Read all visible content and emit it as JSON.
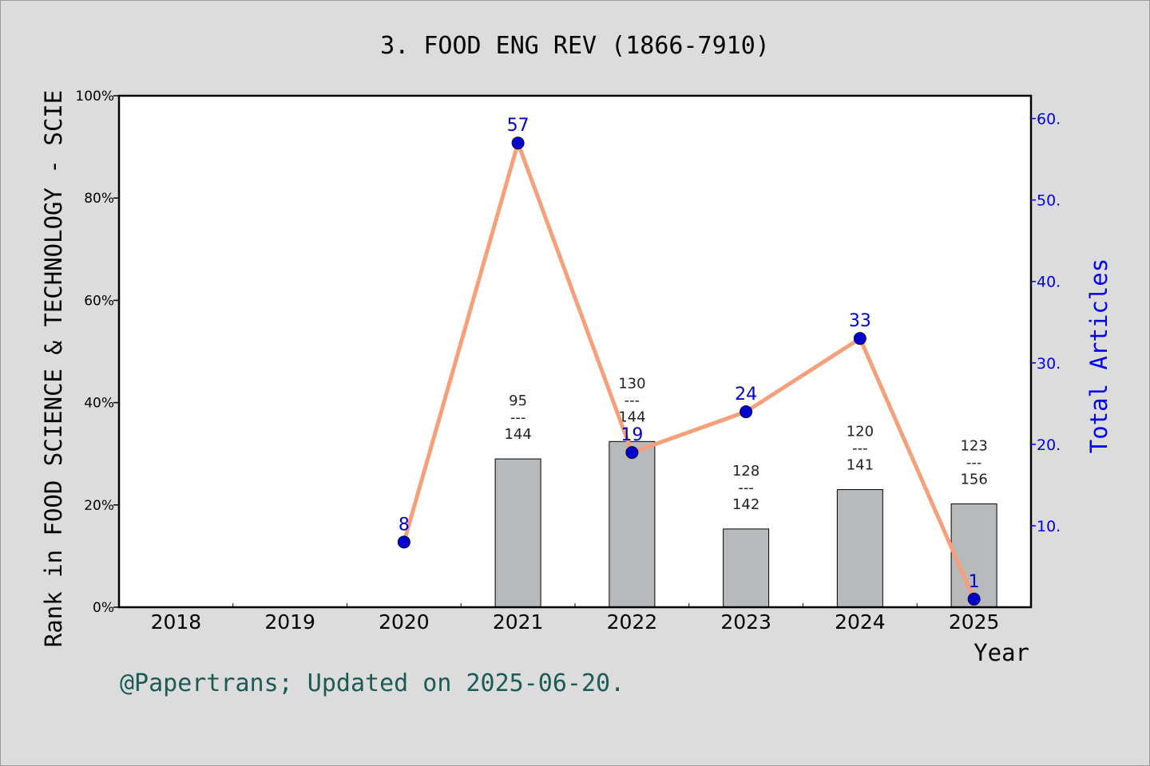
{
  "chart_data": {
    "type": "bar",
    "title": "3. FOOD ENG REV (1866-7910)",
    "xlabel": "Year",
    "ylabel_left": "Rank in FOOD SCIENCE & TECHNOLOGY - SCIE",
    "ylabel_right": "Total Articles",
    "categories": [
      "2018",
      "2019",
      "2020",
      "2021",
      "2022",
      "2023",
      "2024",
      "2025"
    ],
    "left_axis": {
      "ylim": [
        0,
        100
      ],
      "ticks": [
        0,
        20,
        40,
        60,
        80,
        100
      ],
      "tick_labels": [
        "0%",
        "20%",
        "40%",
        "60%",
        "80%",
        "100%"
      ]
    },
    "right_axis": {
      "ylim": [
        0,
        62.8
      ],
      "ticks": [
        10,
        20,
        30,
        40,
        50,
        60
      ],
      "tick_labels": [
        "10.",
        "20.",
        "30.",
        "40.",
        "50.",
        "60."
      ],
      "color": "#0000ee"
    },
    "bars": [
      {
        "year": "2018",
        "value": null,
        "rank": "",
        "divider": "",
        "total": ""
      },
      {
        "year": "2019",
        "value": null,
        "rank": "",
        "divider": "",
        "total": ""
      },
      {
        "year": "2020",
        "value": null,
        "rank": "",
        "divider": "",
        "total": ""
      },
      {
        "year": "2021",
        "value": 29,
        "rank": "95",
        "divider": "---",
        "total": "144"
      },
      {
        "year": "2022",
        "value": 32.4,
        "rank": "130",
        "divider": "---",
        "total": "144"
      },
      {
        "year": "2023",
        "value": 15.3,
        "rank": "128",
        "divider": "---",
        "total": "142"
      },
      {
        "year": "2024",
        "value": 23,
        "rank": "120",
        "divider": "---",
        "total": "141"
      },
      {
        "year": "2025",
        "value": 20.2,
        "rank": "123",
        "divider": "---",
        "total": "156"
      }
    ],
    "line_series": {
      "name": "Total Articles",
      "points": [
        {
          "year": "2020",
          "value": 8,
          "label": "8"
        },
        {
          "year": "2021",
          "value": 57,
          "label": "57"
        },
        {
          "year": "2022",
          "value": 19,
          "label": "19"
        },
        {
          "year": "2023",
          "value": 24,
          "label": "24"
        },
        {
          "year": "2024",
          "value": 33,
          "label": "33"
        },
        {
          "year": "2025",
          "value": 1,
          "label": "1"
        }
      ]
    },
    "colors": {
      "bar_fill": "#b8b9bb",
      "line": "#f5a07a",
      "marker": "#0000cc",
      "right_axis": "#0000ee",
      "footer": "#1a5c55"
    },
    "grid": false,
    "legend": "none"
  },
  "footer": "@Papertrans; Updated on 2025-06-20."
}
